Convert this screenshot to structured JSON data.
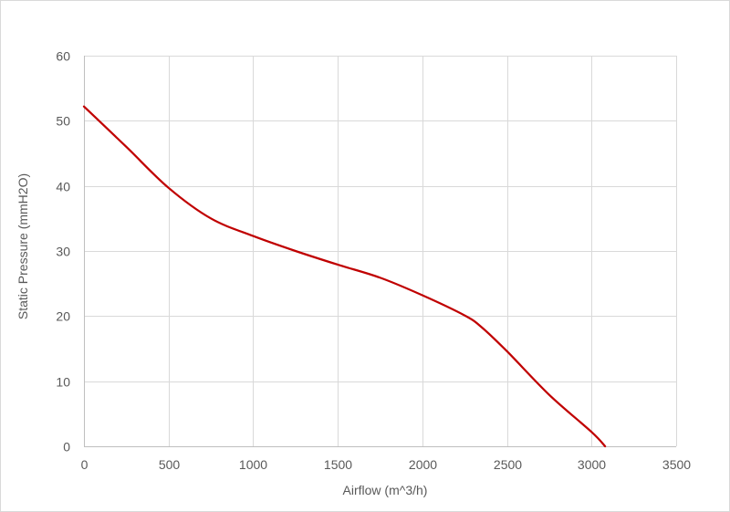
{
  "chart_data": {
    "type": "line",
    "title": "",
    "xlabel": "Airflow (m^3/h)",
    "ylabel": "Static Pressure (mmH2O)",
    "xlim": [
      0,
      3500
    ],
    "ylim": [
      0,
      60
    ],
    "x_ticks": [
      0,
      500,
      1000,
      1500,
      2000,
      2500,
      3000,
      3500
    ],
    "y_ticks": [
      0,
      10,
      20,
      30,
      40,
      50,
      60
    ],
    "grid": true,
    "legend": "none",
    "series": [
      {
        "color": "#c00000",
        "x": [
          0,
          250,
          500,
          750,
          1000,
          1250,
          1500,
          1750,
          2000,
          2250,
          2350,
          2500,
          2750,
          3000,
          3080
        ],
        "y": [
          52.2,
          46.0,
          39.7,
          35.0,
          32.3,
          30.0,
          27.9,
          25.9,
          23.2,
          20.1,
          18.3,
          14.6,
          7.9,
          2.2,
          0.0
        ]
      }
    ]
  }
}
